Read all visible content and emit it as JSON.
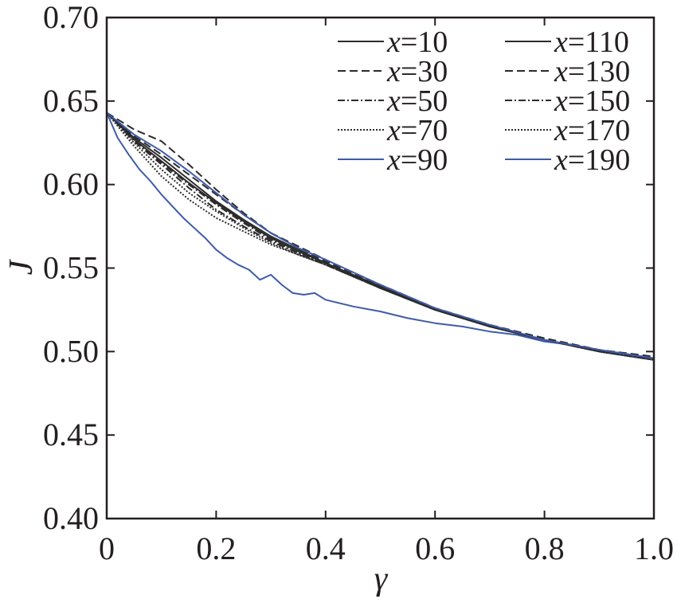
{
  "chart_data": {
    "type": "line",
    "title": "",
    "xlabel": "γ",
    "ylabel": "J",
    "xlim": [
      0,
      1.0
    ],
    "ylim": [
      0.4,
      0.7
    ],
    "xticks": [
      "0",
      "0.2",
      "0.4",
      "0.6",
      "0.8",
      "1.0"
    ],
    "yticks": [
      "0.40",
      "0.45",
      "0.50",
      "0.55",
      "0.60",
      "0.65",
      "0.70"
    ],
    "grid": false,
    "legend_placement": "top-right, two columns",
    "series": [
      {
        "name": "x=10",
        "var": "x",
        "eq": "=10",
        "color": "#2b2b2b",
        "dash": "solid",
        "x": [
          0,
          0.05,
          0.1,
          0.15,
          0.2,
          0.25,
          0.3,
          0.35,
          0.4,
          0.5,
          0.6,
          0.7,
          0.8,
          0.9,
          1.0
        ],
        "y": [
          0.643,
          0.627,
          0.614,
          0.601,
          0.589,
          0.578,
          0.568,
          0.56,
          0.553,
          0.538,
          0.525,
          0.515,
          0.507,
          0.5,
          0.495
        ]
      },
      {
        "name": "x=30",
        "var": "x",
        "eq": "=30",
        "color": "#2b2b2b",
        "dash": "dashed",
        "x": [
          0,
          0.05,
          0.1,
          0.15,
          0.2,
          0.25,
          0.3,
          0.35,
          0.4,
          0.5,
          0.6,
          0.7,
          0.8,
          0.9,
          1.0
        ],
        "y": [
          0.643,
          0.633,
          0.626,
          0.612,
          0.597,
          0.583,
          0.571,
          0.562,
          0.554,
          0.54,
          0.526,
          0.516,
          0.507,
          0.501,
          0.496
        ]
      },
      {
        "name": "x=50",
        "var": "x",
        "eq": "=50",
        "color": "#2b2b2b",
        "dash": "dashdot",
        "x": [
          0,
          0.05,
          0.1,
          0.15,
          0.2,
          0.25,
          0.3,
          0.35,
          0.4,
          0.5,
          0.6,
          0.7,
          0.8,
          0.9,
          1.0
        ],
        "y": [
          0.643,
          0.626,
          0.612,
          0.598,
          0.585,
          0.575,
          0.566,
          0.559,
          0.552,
          0.538,
          0.525,
          0.515,
          0.507,
          0.5,
          0.495
        ]
      },
      {
        "name": "x=70",
        "var": "x",
        "eq": "=70",
        "color": "#2b2b2b",
        "dash": "dotted",
        "x": [
          0,
          0.05,
          0.1,
          0.15,
          0.2,
          0.25,
          0.3,
          0.35,
          0.4,
          0.5,
          0.6,
          0.7,
          0.8,
          0.9,
          1.0
        ],
        "y": [
          0.643,
          0.623,
          0.605,
          0.591,
          0.58,
          0.572,
          0.564,
          0.558,
          0.552,
          0.538,
          0.525,
          0.515,
          0.507,
          0.5,
          0.495
        ]
      },
      {
        "name": "x=90",
        "var": "x",
        "eq": "=90",
        "color": "#3f5ba8",
        "dash": "solid",
        "x": [
          0,
          0.02,
          0.04,
          0.06,
          0.08,
          0.1,
          0.12,
          0.14,
          0.16,
          0.18,
          0.2,
          0.22,
          0.24,
          0.26,
          0.28,
          0.3,
          0.32,
          0.34,
          0.36,
          0.38,
          0.4,
          0.45,
          0.5,
          0.55,
          0.6,
          0.65,
          0.7,
          0.75,
          0.8,
          0.85,
          0.9,
          0.95,
          1.0
        ],
        "y": [
          0.643,
          0.628,
          0.618,
          0.609,
          0.602,
          0.594,
          0.587,
          0.58,
          0.574,
          0.568,
          0.561,
          0.556,
          0.552,
          0.549,
          0.543,
          0.546,
          0.54,
          0.535,
          0.534,
          0.535,
          0.531,
          0.527,
          0.524,
          0.52,
          0.517,
          0.515,
          0.512,
          0.51,
          0.506,
          0.504,
          0.501,
          0.498,
          0.495
        ]
      },
      {
        "name": "x=110",
        "var": "x",
        "eq": "=110",
        "color": "#2b2b2b",
        "dash": "solid",
        "x": [
          0,
          0.05,
          0.1,
          0.15,
          0.2,
          0.25,
          0.3,
          0.35,
          0.4,
          0.5,
          0.6,
          0.7,
          0.8,
          0.9,
          1.0
        ],
        "y": [
          0.643,
          0.628,
          0.616,
          0.603,
          0.59,
          0.579,
          0.569,
          0.561,
          0.553,
          0.539,
          0.525,
          0.515,
          0.507,
          0.501,
          0.496
        ]
      },
      {
        "name": "x=130",
        "var": "x",
        "eq": "=130",
        "color": "#2b2b2b",
        "dash": "dashed",
        "x": [
          0,
          0.05,
          0.1,
          0.15,
          0.2,
          0.25,
          0.3,
          0.35,
          0.4,
          0.5,
          0.6,
          0.7,
          0.8,
          0.9,
          1.0
        ],
        "y": [
          0.643,
          0.629,
          0.618,
          0.606,
          0.594,
          0.582,
          0.571,
          0.563,
          0.555,
          0.54,
          0.526,
          0.516,
          0.508,
          0.501,
          0.497
        ]
      },
      {
        "name": "x=150",
        "var": "x",
        "eq": "=150",
        "color": "#2b2b2b",
        "dash": "dashdot",
        "x": [
          0,
          0.05,
          0.1,
          0.15,
          0.2,
          0.25,
          0.3,
          0.35,
          0.4,
          0.5,
          0.6,
          0.7,
          0.8,
          0.9,
          1.0
        ],
        "y": [
          0.643,
          0.627,
          0.613,
          0.6,
          0.588,
          0.577,
          0.567,
          0.559,
          0.552,
          0.538,
          0.525,
          0.515,
          0.507,
          0.5,
          0.495
        ]
      },
      {
        "name": "x=170",
        "var": "x",
        "eq": "=170",
        "color": "#2b2b2b",
        "dash": "dotted",
        "x": [
          0,
          0.05,
          0.1,
          0.15,
          0.2,
          0.25,
          0.3,
          0.35,
          0.4,
          0.5,
          0.6,
          0.7,
          0.8,
          0.9,
          1.0
        ],
        "y": [
          0.643,
          0.625,
          0.609,
          0.595,
          0.584,
          0.574,
          0.565,
          0.558,
          0.552,
          0.538,
          0.525,
          0.515,
          0.507,
          0.5,
          0.495
        ]
      },
      {
        "name": "x=190",
        "var": "x",
        "eq": "=190",
        "color": "#3f5ba8",
        "dash": "solid",
        "x": [
          0,
          0.05,
          0.1,
          0.15,
          0.2,
          0.25,
          0.3,
          0.35,
          0.4,
          0.5,
          0.6,
          0.7,
          0.8,
          0.9,
          1.0
        ],
        "y": [
          0.643,
          0.63,
          0.62,
          0.608,
          0.595,
          0.582,
          0.571,
          0.562,
          0.555,
          0.54,
          0.526,
          0.516,
          0.507,
          0.501,
          0.496
        ]
      }
    ]
  }
}
